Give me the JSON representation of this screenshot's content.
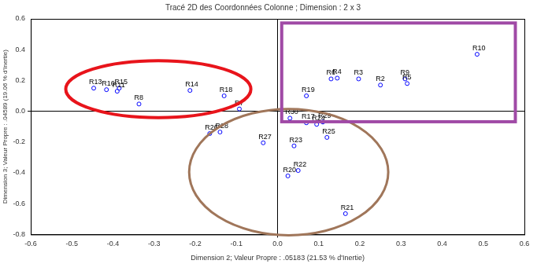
{
  "chart_data": {
    "type": "scatter",
    "title": "Tracé 2D des Coordonnées Colonne ; Dimension : 2 x 3",
    "x_label": "Dimension 2; Valeur Propre : .05183 (21.53 % d'Inertie)",
    "y_label": "Dimension 3; Valeur Propre : .04589 (19.06 % d'Inertie)",
    "labels": [
      "R13",
      "R16",
      "R11",
      "R15",
      "R8",
      "R14",
      "R18",
      "R7",
      "R19",
      "R6",
      "R4",
      "R3",
      "R2",
      "R9",
      "R5",
      "R10",
      "R30",
      "R17",
      "R24",
      "R29",
      "R25",
      "R23",
      "R22",
      "R20",
      "R21",
      "R26",
      "R28",
      "R27"
    ],
    "x": [
      -0.447,
      -0.416,
      -0.39,
      -0.385,
      -0.337,
      -0.213,
      -0.13,
      -0.093,
      0.07,
      0.13,
      0.145,
      0.197,
      0.25,
      0.31,
      0.315,
      0.485,
      0.03,
      0.07,
      0.095,
      0.11,
      0.12,
      0.04,
      0.05,
      0.025,
      0.165,
      -0.165,
      -0.14,
      -0.035
    ],
    "y": [
      0.15,
      0.14,
      0.13,
      0.15,
      0.047,
      0.135,
      0.1,
      0.015,
      0.1,
      0.21,
      0.215,
      0.21,
      0.17,
      0.21,
      0.18,
      0.37,
      -0.045,
      -0.075,
      -0.085,
      -0.07,
      -0.17,
      -0.225,
      -0.385,
      -0.42,
      -0.665,
      -0.145,
      -0.135,
      -0.205
    ],
    "color": "#0000ff",
    "marker": "circle",
    "xlim": [
      -0.6,
      0.6
    ],
    "xticks": [
      -0.6,
      -0.5,
      -0.4,
      -0.3,
      -0.2,
      -0.1,
      {
        "value": 0,
        "label": "0.0"
      },
      0.1,
      0.2,
      0.3,
      0.4,
      0.5,
      0.6
    ],
    "ylim": [
      -0.8,
      0.6
    ],
    "yticks": [
      -0.8,
      -0.6,
      -0.4,
      -0.2,
      {
        "value": 0,
        "label": "0.0"
      },
      0.2,
      0.4,
      0.6
    ],
    "grid": false
  }
}
